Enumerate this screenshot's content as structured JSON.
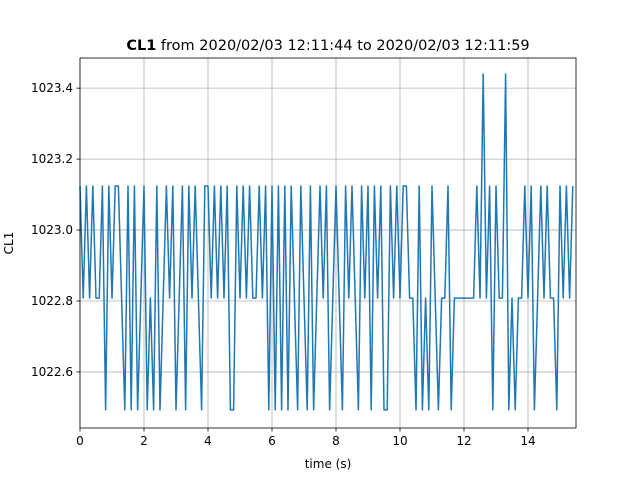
{
  "chart_data": {
    "type": "line",
    "title_bold": "CL1",
    "title": "from 2020/02/03 12:11:44 to 2020/02/03 12:11:59",
    "xlabel": "time (s)",
    "ylabel": "CL1",
    "x": [
      0,
      0.1,
      0.2,
      0.3,
      0.4,
      0.5,
      0.6,
      0.7,
      0.8,
      0.9,
      1,
      1.1,
      1.2,
      1.3,
      1.4,
      1.5,
      1.6,
      1.7,
      1.8,
      1.9,
      2,
      2.1,
      2.2,
      2.3,
      2.4,
      2.5,
      2.6,
      2.7,
      2.8,
      2.9,
      3,
      3.1,
      3.2,
      3.3,
      3.4,
      3.5,
      3.6,
      3.7,
      3.8,
      3.9,
      4,
      4.1,
      4.2,
      4.3,
      4.4,
      4.5,
      4.6,
      4.7,
      4.8,
      4.9,
      5,
      5.1,
      5.2,
      5.3,
      5.4,
      5.5,
      5.6,
      5.7,
      5.8,
      5.9,
      6,
      6.1,
      6.2,
      6.3,
      6.4,
      6.5,
      6.6,
      6.7,
      6.8,
      6.9,
      7,
      7.1,
      7.2,
      7.3,
      7.4,
      7.5,
      7.6,
      7.7,
      7.8,
      7.9,
      8,
      8.1,
      8.2,
      8.3,
      8.4,
      8.5,
      8.6,
      8.7,
      8.8,
      8.9,
      9,
      9.1,
      9.2,
      9.3,
      9.4,
      9.5,
      9.6,
      9.7,
      9.8,
      9.9,
      10,
      10.1,
      10.2,
      10.3,
      10.4,
      10.5,
      10.6,
      10.7,
      10.8,
      10.9,
      11,
      11.1,
      11.2,
      11.3,
      11.4,
      11.5,
      11.6,
      11.7,
      11.8,
      11.9,
      12,
      12.1,
      12.2,
      12.3,
      12.4,
      12.5,
      12.6,
      12.7,
      12.8,
      12.9,
      13,
      13.1,
      13.2,
      13.3,
      13.4,
      13.5,
      13.6,
      13.7,
      13.8,
      13.9,
      14,
      14.1,
      14.2,
      14.3,
      14.4,
      14.5,
      14.6,
      14.7,
      14.8,
      14.9,
      15,
      15.1,
      15.2,
      15.3,
      15.4
    ],
    "series": [
      {
        "name": "CL1",
        "color": "#1f77b4",
        "values": [
          1023.124,
          1022.808,
          1023.124,
          1022.808,
          1023.124,
          1022.808,
          1022.808,
          1023.124,
          1022.493,
          1023.124,
          1022.808,
          1023.124,
          1023.124,
          1022.808,
          1022.493,
          1023.124,
          1022.493,
          1023.124,
          1022.493,
          1022.808,
          1023.124,
          1022.493,
          1022.808,
          1022.493,
          1023.124,
          1022.493,
          1022.808,
          1023.124,
          1022.808,
          1023.124,
          1022.493,
          1022.808,
          1023.124,
          1022.493,
          1023.124,
          1022.808,
          1023.124,
          1022.808,
          1022.493,
          1023.124,
          1023.124,
          1022.808,
          1023.124,
          1022.808,
          1023.124,
          1022.808,
          1023.124,
          1022.493,
          1022.493,
          1023.124,
          1022.808,
          1023.124,
          1022.808,
          1023.124,
          1022.808,
          1022.808,
          1023.124,
          1022.808,
          1023.124,
          1022.493,
          1023.124,
          1022.493,
          1023.124,
          1022.493,
          1023.124,
          1022.493,
          1023.124,
          1022.808,
          1022.493,
          1023.124,
          1022.808,
          1022.493,
          1023.124,
          1022.493,
          1022.808,
          1023.124,
          1022.808,
          1023.124,
          1022.493,
          1022.808,
          1023.124,
          1022.808,
          1022.493,
          1023.124,
          1022.808,
          1023.124,
          1022.808,
          1022.493,
          1023.124,
          1022.808,
          1023.124,
          1022.493,
          1023.124,
          1022.808,
          1023.124,
          1022.493,
          1022.493,
          1023.124,
          1022.808,
          1023.124,
          1022.808,
          1023.124,
          1023.124,
          1022.808,
          1022.808,
          1022.493,
          1023.124,
          1022.493,
          1022.808,
          1022.493,
          1023.124,
          1022.808,
          1022.493,
          1022.808,
          1022.808,
          1023.124,
          1022.493,
          1022.808,
          1022.808,
          1022.808,
          1022.808,
          1022.808,
          1022.808,
          1022.808,
          1023.124,
          1022.808,
          1023.44,
          1022.808,
          1023.124,
          1022.493,
          1023.124,
          1022.808,
          1022.808,
          1023.44,
          1022.493,
          1022.808,
          1022.493,
          1022.808,
          1022.808,
          1023.124,
          1022.808,
          1023.124,
          1022.493,
          1022.808,
          1023.124,
          1022.808,
          1023.124,
          1022.808,
          1022.808,
          1022.493,
          1023.124,
          1022.808,
          1023.124,
          1022.808,
          1023.124
        ]
      }
    ],
    "xlim": [
      0,
      15.5
    ],
    "xticks": [
      0,
      2,
      4,
      6,
      8,
      10,
      12,
      14
    ],
    "ylim": [
      1022.442,
      1023.485
    ],
    "yticks": [
      1022.6,
      1022.8,
      {
        "value": 1023,
        "label": "1023.0"
      },
      1023.2,
      1023.4
    ],
    "grid": true
  }
}
